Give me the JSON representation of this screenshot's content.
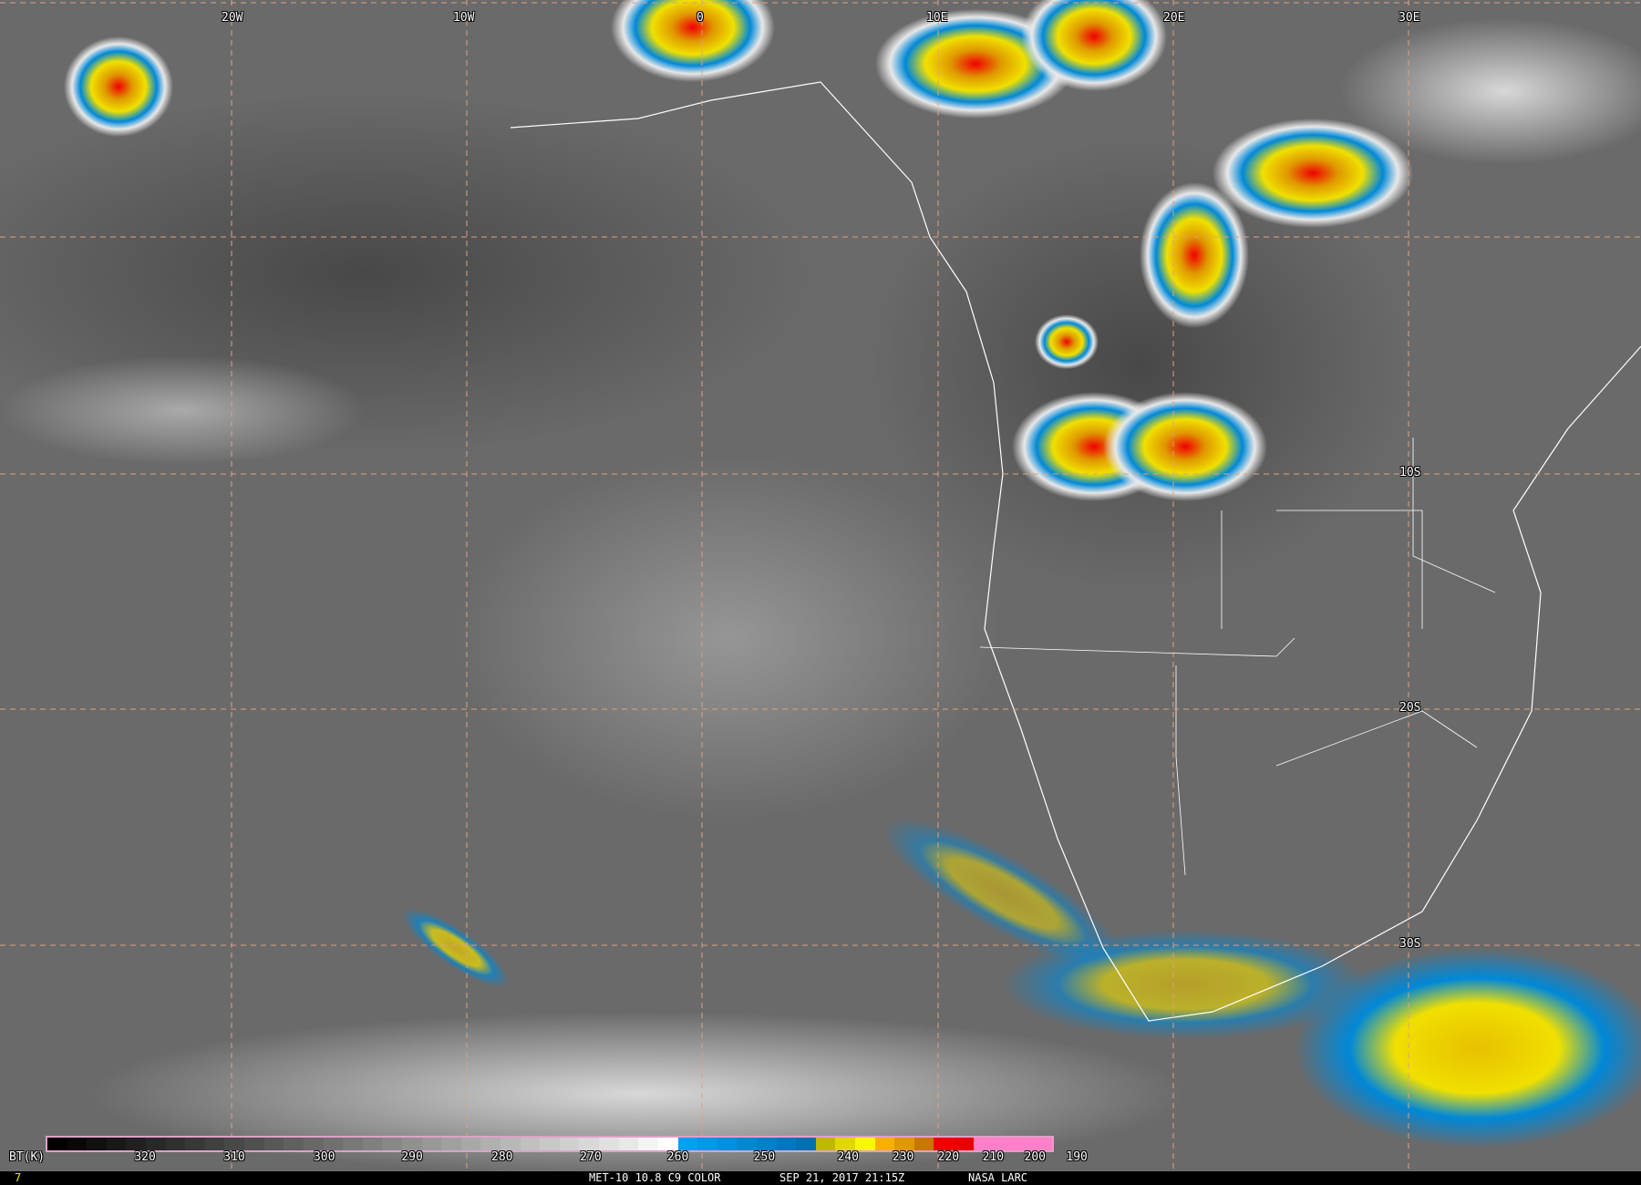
{
  "grid": {
    "lon_labels": [
      "20W",
      "10W",
      "0",
      "10E",
      "20E",
      "30E"
    ],
    "lat_labels": [
      "10S",
      "20S",
      "30S"
    ]
  },
  "colorbar": {
    "unit_label": "BT(K)",
    "ticks": [
      "320",
      "310",
      "300",
      "290",
      "280",
      "270",
      "260",
      "250",
      "240",
      "230",
      "220",
      "210",
      "200",
      "190"
    ],
    "colors": [
      "#000000",
      "#080808",
      "#101010",
      "#181818",
      "#202020",
      "#282828",
      "#303030",
      "#383838",
      "#404040",
      "#484848",
      "#505050",
      "#585858",
      "#606060",
      "#686868",
      "#707070",
      "#787878",
      "#808080",
      "#888888",
      "#909090",
      "#989898",
      "#a0a0a0",
      "#a8a8a8",
      "#b0b0b0",
      "#b8b8b8",
      "#c0c0c0",
      "#c8c8c8",
      "#d0d0d0",
      "#d8d8d8",
      "#e0e0e0",
      "#e8e8e8",
      "#f4f4f4",
      "#ffffff",
      "#00a0f0",
      "#0098e8",
      "#0090e0",
      "#0088d0",
      "#0080c8",
      "#0078c0",
      "#0070b0",
      "#c0b800",
      "#e0d800",
      "#f8f800",
      "#f8b000",
      "#e09800",
      "#c87800",
      "#f00000",
      "#e80000",
      "#ff80c8",
      "#ff80c8",
      "#ff80c8",
      "#ff80c8"
    ]
  },
  "footer": {
    "frame": "7",
    "product": "MET-10 10.8 C9 COLOR",
    "datetime": "SEP 21, 2017 21:15Z",
    "source": "NASA LARC"
  }
}
